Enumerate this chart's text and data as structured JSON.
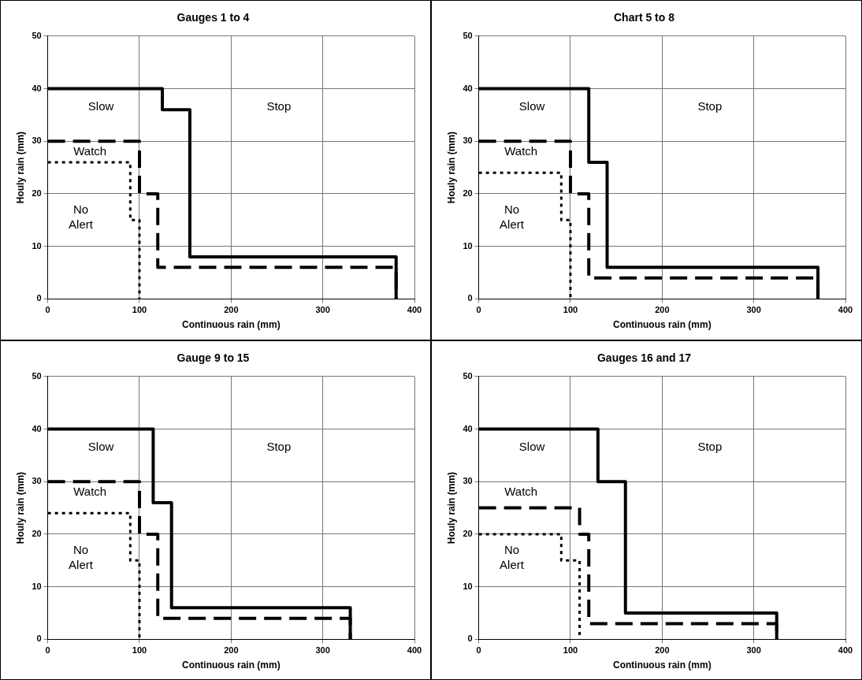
{
  "chart_data": [
    {
      "type": "step",
      "title": "Gauges 1 to 4",
      "xlabel": "Continuous rain (mm)",
      "ylabel": "Houly rain (mm)",
      "xlim": [
        0,
        400
      ],
      "xticks": [
        0,
        100,
        200,
        300,
        400
      ],
      "ylim": [
        0,
        50
      ],
      "yticks": [
        0,
        10,
        20,
        30,
        40,
        50
      ],
      "grid": true,
      "legend": false,
      "marker": "none",
      "series": [
        {
          "color": "#000000",
          "line_style": "solid",
          "x": [
            0,
            125,
            155,
            380
          ],
          "values": [
            40,
            36,
            8,
            0
          ]
        },
        {
          "color": "#000000",
          "line_style": "dashed",
          "x": [
            0,
            100,
            120,
            380
          ],
          "values": [
            30,
            20,
            6,
            0
          ]
        },
        {
          "color": "#000000",
          "line_style": "dotted",
          "x": [
            0,
            90,
            100
          ],
          "values": [
            26,
            15,
            0
          ]
        }
      ],
      "annotations": [
        "Slow",
        "Stop",
        "Watch",
        "No\nAlert"
      ]
    },
    {
      "type": "step",
      "title": "Chart 5 to 8",
      "xlabel": "Continuous rain (mm)",
      "ylabel": "Houly rain (mm)",
      "xlim": [
        0,
        400
      ],
      "xticks": [
        0,
        100,
        200,
        300,
        400
      ],
      "ylim": [
        0,
        50
      ],
      "yticks": [
        0,
        10,
        20,
        30,
        40,
        50
      ],
      "grid": true,
      "legend": false,
      "marker": "none",
      "series": [
        {
          "color": "#000000",
          "line_style": "solid",
          "x": [
            0,
            120,
            140,
            370
          ],
          "values": [
            40,
            26,
            6,
            0
          ]
        },
        {
          "color": "#000000",
          "line_style": "dashed",
          "x": [
            0,
            100,
            120,
            370
          ],
          "values": [
            30,
            20,
            4,
            0
          ]
        },
        {
          "color": "#000000",
          "line_style": "dotted",
          "x": [
            0,
            90,
            100
          ],
          "values": [
            24,
            15,
            0
          ]
        }
      ],
      "annotations": [
        "Slow",
        "Stop",
        "Watch",
        "No\nAlert"
      ]
    },
    {
      "type": "step",
      "title": "Gauge 9 to 15",
      "xlabel": "Continuous rain (mm)",
      "ylabel": "Houly rain (mm)",
      "xlim": [
        0,
        400
      ],
      "xticks": [
        0,
        100,
        200,
        300,
        400
      ],
      "ylim": [
        0,
        50
      ],
      "yticks": [
        0,
        10,
        20,
        30,
        40,
        50
      ],
      "grid": true,
      "legend": false,
      "marker": "none",
      "series": [
        {
          "color": "#000000",
          "line_style": "solid",
          "x": [
            0,
            115,
            135,
            330
          ],
          "values": [
            40,
            26,
            6,
            0
          ]
        },
        {
          "color": "#000000",
          "line_style": "dashed",
          "x": [
            0,
            100,
            120,
            330
          ],
          "values": [
            30,
            20,
            4,
            0
          ]
        },
        {
          "color": "#000000",
          "line_style": "dotted",
          "x": [
            0,
            90,
            100
          ],
          "values": [
            24,
            15,
            0
          ]
        }
      ],
      "annotations": [
        "Slow",
        "Stop",
        "Watch",
        "No\nAlert"
      ]
    },
    {
      "type": "step",
      "title": "Gauges 16 and 17",
      "xlabel": "Continuous rain (mm)",
      "ylabel": "Houly rain (mm)",
      "xlim": [
        0,
        400
      ],
      "xticks": [
        0,
        100,
        200,
        300,
        400
      ],
      "ylim": [
        0,
        50
      ],
      "yticks": [
        0,
        10,
        20,
        30,
        40,
        50
      ],
      "grid": true,
      "legend": false,
      "marker": "none",
      "series": [
        {
          "color": "#000000",
          "line_style": "solid",
          "x": [
            0,
            130,
            160,
            325
          ],
          "values": [
            40,
            30,
            5,
            0
          ]
        },
        {
          "color": "#000000",
          "line_style": "dashed",
          "x": [
            0,
            110,
            120,
            325
          ],
          "values": [
            25,
            20,
            3,
            0
          ]
        },
        {
          "color": "#000000",
          "line_style": "dotted",
          "x": [
            0,
            90,
            110
          ],
          "values": [
            20,
            15,
            0
          ]
        }
      ],
      "annotations": [
        "Slow",
        "Stop",
        "Watch",
        "No\nAlert"
      ]
    }
  ]
}
